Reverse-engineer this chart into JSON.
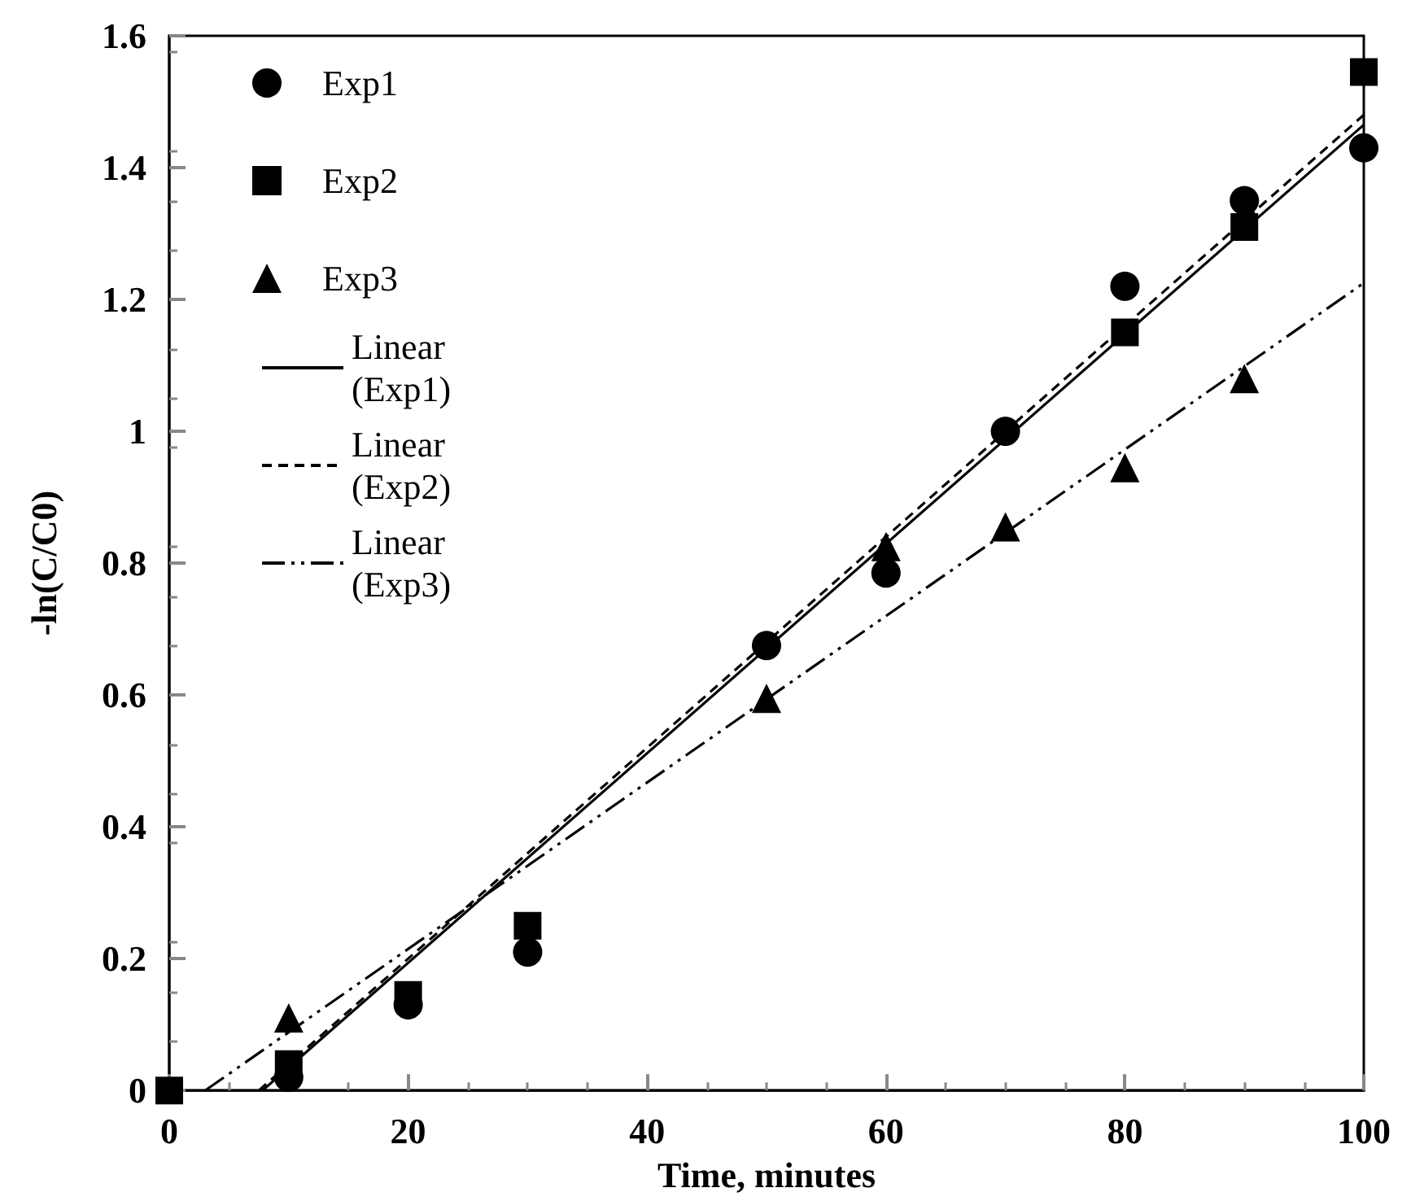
{
  "chart_data": {
    "type": "scatter",
    "xlabel": "Time, minutes",
    "ylabel": "-ln(C/C0)",
    "x": [
      0,
      10,
      20,
      30,
      50,
      60,
      70,
      80,
      90,
      100
    ],
    "series": [
      {
        "name": "Exp1",
        "color": "#000000",
        "marker": "circle",
        "values": [
          null,
          0.02,
          0.13,
          0.21,
          0.675,
          0.785,
          1.0,
          1.22,
          1.35,
          1.43
        ]
      },
      {
        "name": "Exp2",
        "color": "#000000",
        "marker": "square",
        "values": [
          0,
          0.04,
          0.145,
          0.25,
          null,
          null,
          null,
          1.15,
          1.31,
          1.545
        ]
      },
      {
        "name": "Exp3",
        "color": "#000000",
        "marker": "triangle",
        "values": [
          null,
          0.11,
          null,
          null,
          0.595,
          0.825,
          0.855,
          0.945,
          1.08,
          null
        ]
      },
      {
        "name": "Linear\n(Exp1)",
        "type": "line",
        "color": "#000000",
        "line_style": "solid",
        "x": [
          7.8,
          100
        ],
        "values": [
          0,
          1.465
        ]
      },
      {
        "name": "Linear\n(Exp2)",
        "type": "line",
        "color": "#000000",
        "line_style": "dashed",
        "x": [
          7.5,
          100
        ],
        "values": [
          0,
          1.48
        ]
      },
      {
        "name": "Linear\n(Exp3)",
        "type": "line",
        "color": "#000000",
        "line_style": "dashdot",
        "x": [
          3,
          100
        ],
        "values": [
          0,
          1.225
        ]
      }
    ],
    "xlim": [
      0,
      100
    ],
    "xticks": [
      0,
      20,
      40,
      60,
      80,
      100
    ],
    "ylim": [
      0,
      1.6
    ],
    "yticks": [
      0,
      0.2,
      0.4,
      0.6,
      0.8,
      1,
      1.2,
      1.4,
      1.6
    ],
    "grid": false,
    "legend": "top left"
  }
}
